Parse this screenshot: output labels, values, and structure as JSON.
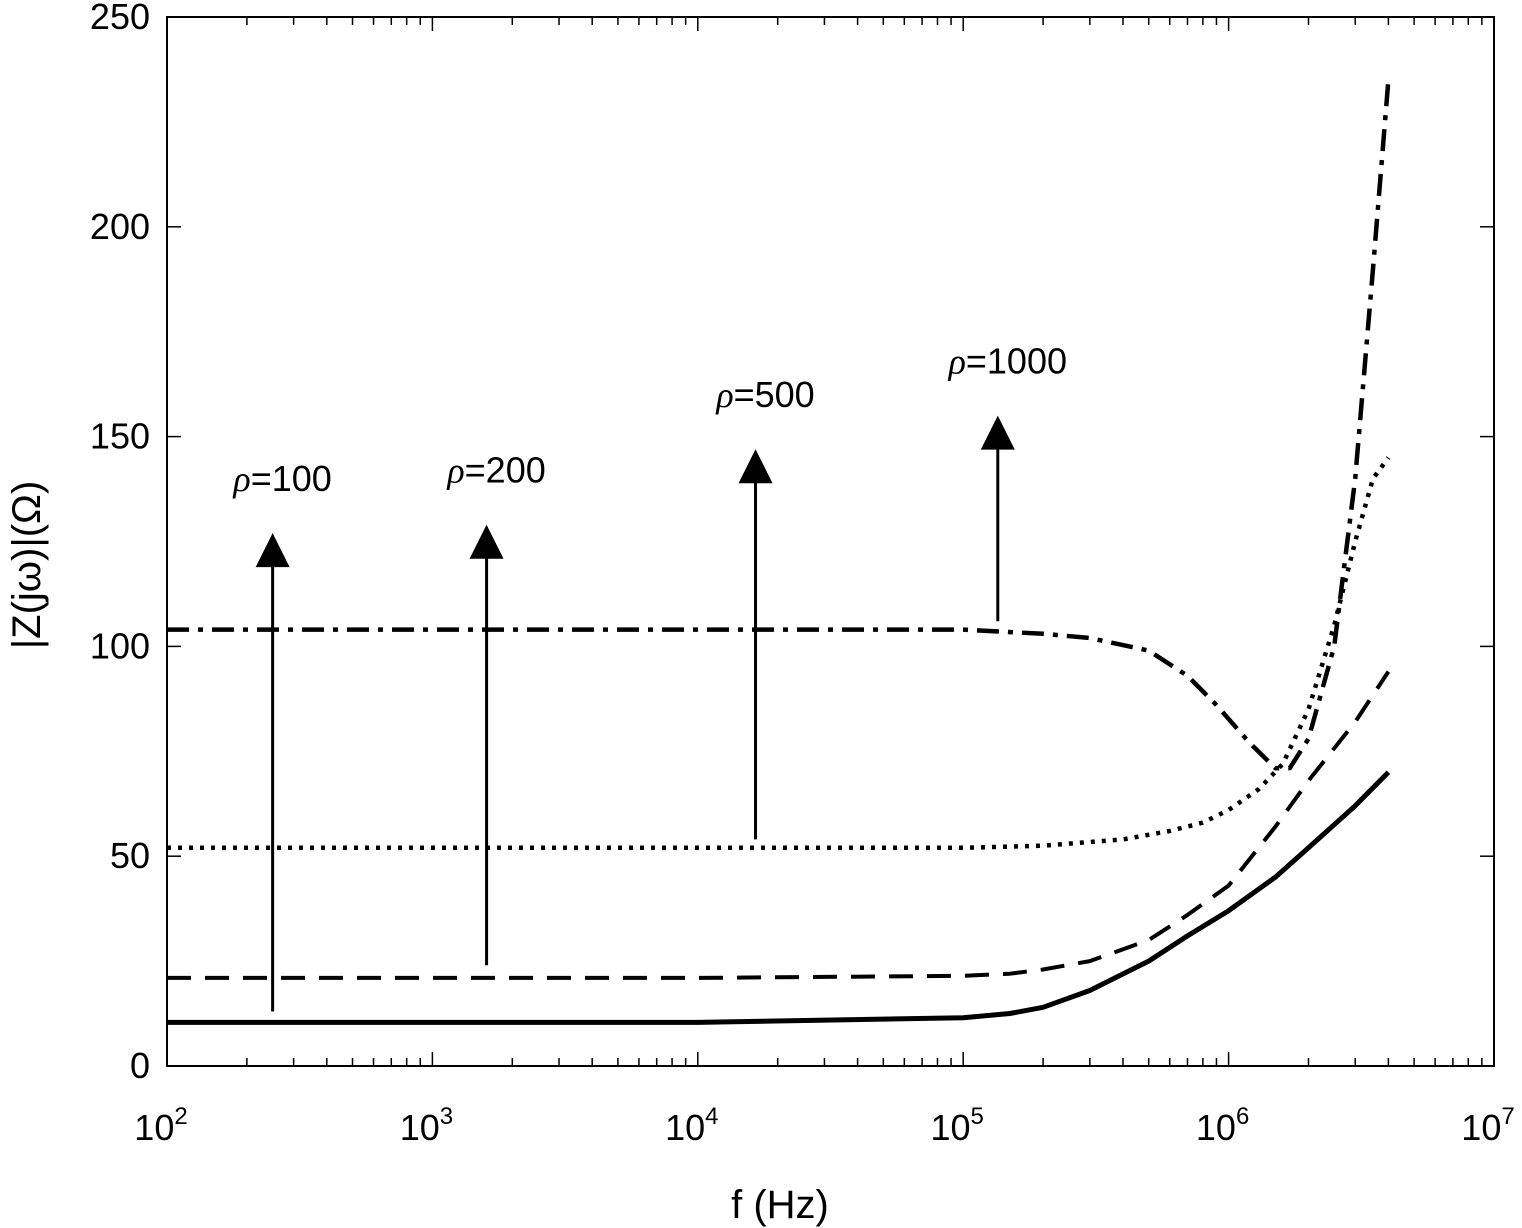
{
  "chart_data": {
    "type": "line",
    "title": "",
    "xlabel": "f (Hz)",
    "ylabel": "|Z(jω)|(Ω)",
    "xscale": "log",
    "xlim": [
      100,
      10000000
    ],
    "ylim": [
      0,
      250
    ],
    "grid": false,
    "legend": "none",
    "x_ticks": [
      {
        "base": "10",
        "exp": "2",
        "value": 100
      },
      {
        "base": "10",
        "exp": "3",
        "value": 1000
      },
      {
        "base": "10",
        "exp": "4",
        "value": 10000
      },
      {
        "base": "10",
        "exp": "5",
        "value": 100000
      },
      {
        "base": "10",
        "exp": "6",
        "value": 1000000
      },
      {
        "base": "10",
        "exp": "7",
        "value": 10000000
      }
    ],
    "y_ticks": [
      "0",
      "50",
      "100",
      "150",
      "200",
      "250"
    ],
    "series": [
      {
        "style": "solid",
        "x": [
          100,
          1000,
          10000,
          100000,
          150000,
          200000,
          300000,
          500000,
          700000,
          1000000,
          1500000,
          2000000,
          3000000,
          4000000
        ],
        "y": [
          10.4,
          10.4,
          10.4,
          11.5,
          12.5,
          14,
          18,
          25,
          31,
          37,
          45,
          52,
          62,
          70
        ]
      },
      {
        "style": "dashed",
        "x": [
          100,
          1000,
          10000,
          100000,
          150000,
          200000,
          300000,
          500000,
          700000,
          1000000,
          1500000,
          2000000,
          3000000,
          4000000
        ],
        "y": [
          21,
          21,
          21,
          21.5,
          22,
          23,
          25,
          30,
          36,
          43,
          57,
          68,
          82,
          94
        ]
      },
      {
        "style": "dotted",
        "x": [
          100,
          1000,
          10000,
          100000,
          200000,
          400000,
          600000,
          800000,
          1000000,
          1300000,
          1600000,
          2000000,
          2500000,
          3000000,
          3500000,
          4000000
        ],
        "y": [
          52,
          52,
          52,
          52,
          52.5,
          54,
          56,
          58,
          61,
          66,
          72,
          85,
          105,
          125,
          140,
          145
        ]
      },
      {
        "style": "dash-dot",
        "x": [
          100,
          1000,
          10000,
          100000,
          200000,
          300000,
          500000,
          700000,
          900000,
          1200000,
          1500000,
          1700000,
          2000000,
          2500000,
          3000000,
          3500000,
          4000000
        ],
        "y": [
          104,
          104,
          104,
          104,
          103,
          102,
          99,
          93,
          86,
          77,
          71,
          71,
          78,
          100,
          140,
          190,
          235
        ]
      }
    ],
    "annotations": [
      {
        "rho": "ρ",
        "text": "=100",
        "x": 250,
        "y_from": 13,
        "y_to": 127
      },
      {
        "rho": "ρ",
        "text": "=200",
        "x": 1600,
        "y_from": 24,
        "y_to": 129
      },
      {
        "rho": "ρ",
        "text": "=500",
        "x": 16500,
        "y_from": 54,
        "y_to": 147
      },
      {
        "rho": "ρ",
        "text": "=1000",
        "x": 135000,
        "y_from": 106,
        "y_to": 155
      }
    ]
  }
}
